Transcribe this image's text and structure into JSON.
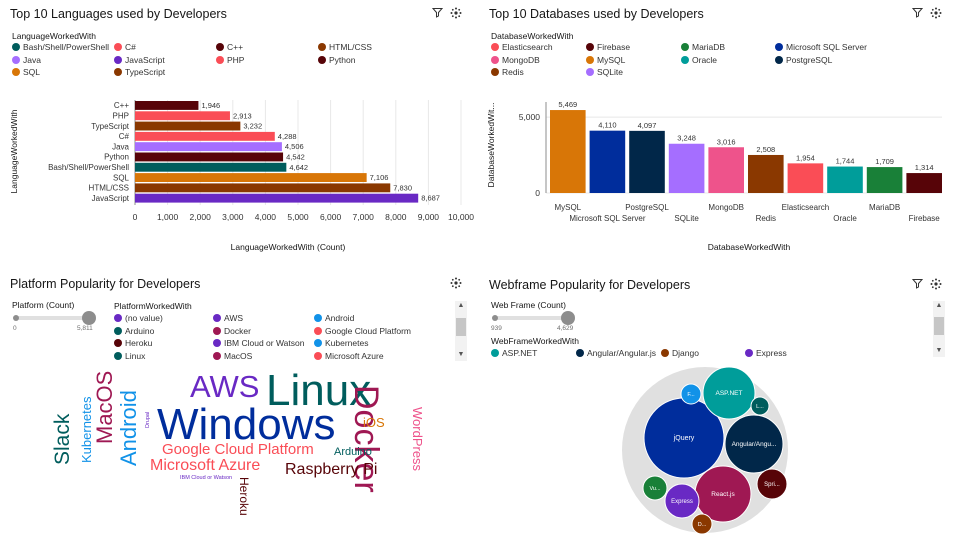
{
  "panels": {
    "languages": {
      "title": "Top 10 Languages used by Developers",
      "legend_title": "LanguageWorkedWith",
      "legend": [
        {
          "label": "Bash/Shell/PowerShell",
          "color": "#005d5d"
        },
        {
          "label": "C#",
          "color": "#fa4d56"
        },
        {
          "label": "C++",
          "color": "#570408"
        },
        {
          "label": "HTML/CSS",
          "color": "#8a3800"
        },
        {
          "label": "Java",
          "color": "#a56eff"
        },
        {
          "label": "JavaScript",
          "color": "#6929c4"
        },
        {
          "label": "PHP",
          "color": "#fa4d56"
        },
        {
          "label": "Python",
          "color": "#570408"
        },
        {
          "label": "SQL",
          "color": "#d87607"
        },
        {
          "label": "TypeScript",
          "color": "#8a3800"
        }
      ]
    },
    "databases": {
      "title": "Top 10 Databases used by Developers",
      "legend_title": "DatabaseWorkedWith",
      "legend": [
        {
          "label": "Elasticsearch",
          "color": "#fa4d56"
        },
        {
          "label": "Firebase",
          "color": "#570408"
        },
        {
          "label": "MariaDB",
          "color": "#198038"
        },
        {
          "label": "Microsoft SQL Server",
          "color": "#002d9c"
        },
        {
          "label": "MongoDB",
          "color": "#ee538b"
        },
        {
          "label": "MySQL",
          "color": "#d87607"
        },
        {
          "label": "Oracle",
          "color": "#009d9a"
        },
        {
          "label": "PostgreSQL",
          "color": "#012749"
        },
        {
          "label": "Redis",
          "color": "#8a3800"
        },
        {
          "label": "SQLite",
          "color": "#a56eff"
        }
      ]
    },
    "platform": {
      "title": "Platform Popularity for Developers",
      "slider_label": "Platform (Count)",
      "slider_min": "0",
      "slider_max": "5,811",
      "legend_title": "PlatformWorkedWith",
      "legend": [
        {
          "label": "(no value)",
          "color": "#6929c4"
        },
        {
          "label": "AWS",
          "color": "#6929c4"
        },
        {
          "label": "Android",
          "color": "#1192e8"
        },
        {
          "label": "Arduino",
          "color": "#005d5d"
        },
        {
          "label": "Docker",
          "color": "#9f1853"
        },
        {
          "label": "Google Cloud Platform",
          "color": "#fa4d56"
        },
        {
          "label": "Heroku",
          "color": "#570408"
        },
        {
          "label": "IBM Cloud or Watson",
          "color": "#6929c4"
        },
        {
          "label": "Kubernetes",
          "color": "#1192e8"
        },
        {
          "label": "Linux",
          "color": "#005d5d"
        },
        {
          "label": "MacOS",
          "color": "#9f1853"
        },
        {
          "label": "Microsoft Azure",
          "color": "#fa4d56"
        }
      ],
      "words": [
        {
          "text": "Windows",
          "color": "#002d9c"
        },
        {
          "text": "Linux",
          "color": "#005d5d"
        },
        {
          "text": "AWS",
          "color": "#6929c4"
        },
        {
          "text": "Docker",
          "color": "#9f1853"
        },
        {
          "text": "Android",
          "color": "#1192e8"
        },
        {
          "text": "MacOS",
          "color": "#9f1853"
        },
        {
          "text": "Slack",
          "color": "#005d5d"
        },
        {
          "text": "Kubernetes",
          "color": "#1192e8"
        },
        {
          "text": "Google Cloud Platform",
          "color": "#fa4d56"
        },
        {
          "text": "Microsoft Azure",
          "color": "#fa4d56"
        },
        {
          "text": "Raspberry Pi",
          "color": "#570408"
        },
        {
          "text": "WordPress",
          "color": "#ee538b"
        },
        {
          "text": "iOS",
          "color": "#d87607"
        },
        {
          "text": "Arduino",
          "color": "#005d5d"
        },
        {
          "text": "Heroku",
          "color": "#570408"
        },
        {
          "text": "IBM Cloud or Watson",
          "color": "#6929c4"
        },
        {
          "text": "Drupal",
          "color": "#6929c4"
        }
      ]
    },
    "webframe": {
      "title": "Webframe Popularity for Developers",
      "slider_label": "Web Frame (Count)",
      "slider_min": "939",
      "slider_max": "4,629",
      "legend_title": "WebFrameWorkedWith",
      "legend": [
        {
          "label": "ASP.NET",
          "color": "#009d9a"
        },
        {
          "label": "Angular/Angular.js",
          "color": "#012749"
        },
        {
          "label": "Django",
          "color": "#8a3800"
        },
        {
          "label": "Express",
          "color": "#6929c4"
        }
      ],
      "bubbles": [
        {
          "label": "jQuery",
          "color": "#002d9c"
        },
        {
          "label": "ASP.NET",
          "color": "#009d9a"
        },
        {
          "label": "Angular/Angu...",
          "color": "#012749"
        },
        {
          "label": "React.js",
          "color": "#9f1853"
        },
        {
          "label": "Spri...",
          "color": "#570408"
        },
        {
          "label": "Express",
          "color": "#6929c4"
        },
        {
          "label": "Vu...",
          "color": "#198038"
        },
        {
          "label": "D...",
          "color": "#8a3800"
        },
        {
          "label": "F...",
          "color": "#1192e8"
        },
        {
          "label": "L...",
          "color": "#005d5d"
        }
      ]
    }
  },
  "chart_data": [
    {
      "type": "bar",
      "orientation": "horizontal",
      "title": "Top 10 Languages used by Developers",
      "xlabel": "LanguageWorkedWith (Count)",
      "ylabel": "LanguageWorkedWith",
      "xlim": [
        0,
        10000
      ],
      "xticks": [
        "0",
        "1,000",
        "2,000",
        "3,000",
        "4,000",
        "5,000",
        "6,000",
        "7,000",
        "8,000",
        "9,000",
        "10,000"
      ],
      "categories": [
        "C++",
        "PHP",
        "TypeScript",
        "C#",
        "Java",
        "Python",
        "Bash/Shell/PowerShell",
        "SQL",
        "HTML/CSS",
        "JavaScript"
      ],
      "values": [
        1946,
        2913,
        3232,
        4288,
        4506,
        4542,
        4642,
        7106,
        7830,
        8687
      ],
      "value_labels": [
        "1,946",
        "2,913",
        "3,232",
        "4,288",
        "4,506",
        "4,542",
        "4,642",
        "7,106",
        "7,830",
        "8,687"
      ],
      "colors": [
        "#570408",
        "#fa4d56",
        "#8a3800",
        "#fa4d56",
        "#a56eff",
        "#570408",
        "#005d5d",
        "#d87607",
        "#8a3800",
        "#6929c4"
      ]
    },
    {
      "type": "bar",
      "orientation": "vertical",
      "title": "Top 10 Databases used by Developers",
      "xlabel": "DatabaseWorkedWith",
      "ylabel": "DatabaseWorkedWit...",
      "ylim": [
        0,
        6000
      ],
      "yticks": [
        "0",
        "5,000"
      ],
      "categories": [
        "MySQL",
        "Microsoft SQL Server",
        "PostgreSQL",
        "SQLite",
        "MongoDB",
        "Redis",
        "Elasticsearch",
        "Oracle",
        "MariaDB",
        "Firebase"
      ],
      "values": [
        5469,
        4110,
        4097,
        3248,
        3016,
        2508,
        1954,
        1744,
        1709,
        1314
      ],
      "value_labels": [
        "5,469",
        "4,110",
        "4,097",
        "3,248",
        "3,016",
        "2,508",
        "1,954",
        "1,744",
        "1,709",
        "1,314"
      ],
      "colors": [
        "#d87607",
        "#002d9c",
        "#012749",
        "#a56eff",
        "#ee538b",
        "#8a3800",
        "#fa4d56",
        "#009d9a",
        "#198038",
        "#570408"
      ]
    }
  ]
}
